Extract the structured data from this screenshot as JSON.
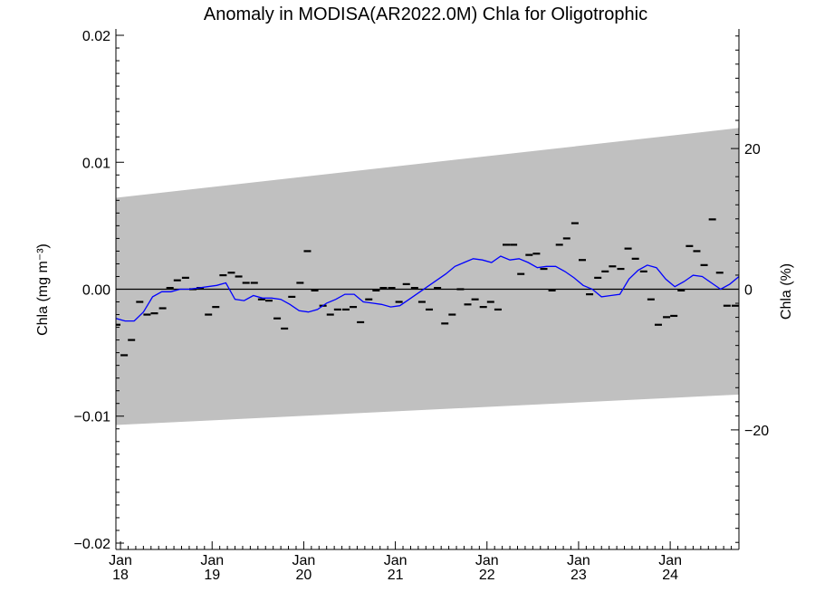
{
  "chart_data": {
    "type": "line",
    "title": "Anomaly in MODISA(AR2022.0M) Chla for Oligotrophic",
    "ylabel_left": "Chla (mg m⁻³)",
    "ylabel_right": "Chla (%)",
    "ylim_left": [
      -0.0205,
      0.0205
    ],
    "ylim_right": [
      -37.0,
      37.0
    ],
    "xlim": [
      2017.95,
      2024.75
    ],
    "grid": false,
    "y_ticks_left": [
      {
        "value": 0.02,
        "label": "0.02"
      },
      {
        "value": 0.01,
        "label": "0.01"
      },
      {
        "value": 0.0,
        "label": "0.00"
      },
      {
        "value": -0.01,
        "label": "−0.01"
      },
      {
        "value": -0.02,
        "label": "−0.02"
      }
    ],
    "y_ticks_right": [
      {
        "value": 20,
        "label": "20"
      },
      {
        "value": 0,
        "label": "0"
      },
      {
        "value": -20,
        "label": "−20"
      }
    ],
    "x_ticks": [
      {
        "value": 2018,
        "month": "Jan",
        "year": "18"
      },
      {
        "value": 2019,
        "month": "Jan",
        "year": "19"
      },
      {
        "value": 2020,
        "month": "Jan",
        "year": "20"
      },
      {
        "value": 2021,
        "month": "Jan",
        "year": "21"
      },
      {
        "value": 2022,
        "month": "Jan",
        "year": "22"
      },
      {
        "value": 2023,
        "month": "Jan",
        "year": "23"
      },
      {
        "value": 2024,
        "month": "Jan",
        "year": "24"
      }
    ],
    "envelope": {
      "x": [
        2017.95,
        2024.75
      ],
      "upper": [
        0.0072,
        0.0127
      ],
      "lower": [
        -0.0107,
        -0.0083
      ],
      "color": "#c0c0c0"
    },
    "zero_line_color": "#000000",
    "series": [
      {
        "kind": "points",
        "color": "#000000",
        "x": [
          2017.96,
          2018.04,
          2018.12,
          2018.21,
          2018.29,
          2018.37,
          2018.46,
          2018.54,
          2018.62,
          2018.71,
          2018.79,
          2018.87,
          2018.96,
          2019.04,
          2019.12,
          2019.21,
          2019.29,
          2019.37,
          2019.46,
          2019.54,
          2019.62,
          2019.71,
          2019.79,
          2019.87,
          2019.96,
          2020.04,
          2020.12,
          2020.21,
          2020.29,
          2020.37,
          2020.46,
          2020.54,
          2020.62,
          2020.71,
          2020.79,
          2020.87,
          2020.96,
          2021.04,
          2021.12,
          2021.21,
          2021.29,
          2021.37,
          2021.46,
          2021.54,
          2021.62,
          2021.71,
          2021.79,
          2021.87,
          2021.96,
          2022.04,
          2022.12,
          2022.21,
          2022.29,
          2022.37,
          2022.46,
          2022.54,
          2022.62,
          2022.71,
          2022.79,
          2022.87,
          2022.96,
          2023.04,
          2023.12,
          2023.21,
          2023.29,
          2023.37,
          2023.46,
          2023.54,
          2023.62,
          2023.71,
          2023.79,
          2023.87,
          2023.96,
          2024.04,
          2024.12,
          2024.21,
          2024.29,
          2024.37,
          2024.46,
          2024.54,
          2024.62,
          2024.71
        ],
        "y": [
          -0.0028,
          -0.0052,
          -0.004,
          -0.001,
          -0.002,
          -0.0019,
          -0.0015,
          0.0001,
          0.0007,
          0.0009,
          0.0,
          0.0001,
          -0.002,
          -0.0014,
          0.0011,
          0.0013,
          0.001,
          0.0005,
          0.0005,
          -0.0008,
          -0.0009,
          -0.0023,
          -0.0031,
          -0.0006,
          0.0005,
          0.003,
          -0.0001,
          -0.0013,
          -0.002,
          -0.0016,
          -0.0016,
          -0.0014,
          -0.0026,
          -0.0008,
          -0.0001,
          0.0001,
          0.0001,
          -0.001,
          0.0004,
          0.0001,
          -0.001,
          -0.0016,
          0.0001,
          -0.0027,
          -0.002,
          0.0,
          -0.0012,
          -0.0008,
          -0.0014,
          -0.001,
          -0.0016,
          0.0035,
          0.0035,
          0.0012,
          0.0027,
          0.0028,
          0.0016,
          -0.0001,
          0.0035,
          0.004,
          0.0052,
          0.0023,
          -0.0004,
          0.0009,
          0.0014,
          0.0018,
          0.0016,
          0.0032,
          0.0024,
          0.0014,
          -0.0008,
          -0.0028,
          -0.0022,
          -0.0021,
          -0.0001,
          0.0034,
          0.003,
          0.0019,
          0.0055,
          0.0013,
          -0.0013,
          -0.0013
        ]
      },
      {
        "kind": "line",
        "color": "#0000ff",
        "x": [
          2017.95,
          2018.05,
          2018.15,
          2018.25,
          2018.35,
          2018.45,
          2018.55,
          2018.65,
          2018.75,
          2018.85,
          2018.95,
          2019.05,
          2019.15,
          2019.25,
          2019.35,
          2019.45,
          2019.55,
          2019.65,
          2019.75,
          2019.85,
          2019.95,
          2020.05,
          2020.15,
          2020.25,
          2020.35,
          2020.45,
          2020.55,
          2020.65,
          2020.75,
          2020.85,
          2020.95,
          2021.05,
          2021.15,
          2021.25,
          2021.35,
          2021.45,
          2021.55,
          2021.65,
          2021.75,
          2021.85,
          2021.95,
          2022.05,
          2022.15,
          2022.25,
          2022.35,
          2022.45,
          2022.55,
          2022.65,
          2022.75,
          2022.85,
          2022.95,
          2023.05,
          2023.15,
          2023.25,
          2023.35,
          2023.45,
          2023.55,
          2023.65,
          2023.75,
          2023.85,
          2023.95,
          2024.05,
          2024.15,
          2024.25,
          2024.35,
          2024.45,
          2024.55,
          2024.65,
          2024.75
        ],
        "y": [
          -0.0023,
          -0.0025,
          -0.0025,
          -0.0018,
          -0.0006,
          -0.0002,
          -0.0002,
          0.0,
          0.0,
          0.0001,
          0.0002,
          0.0003,
          0.0005,
          -0.0008,
          -0.0009,
          -0.0005,
          -0.0007,
          -0.0007,
          -0.0008,
          -0.0012,
          -0.0017,
          -0.0018,
          -0.0016,
          -0.0011,
          -0.0008,
          -0.0004,
          -0.0004,
          -0.001,
          -0.0011,
          -0.0012,
          -0.0014,
          -0.0013,
          -0.0008,
          -0.0003,
          0.0002,
          0.0007,
          0.0012,
          0.0018,
          0.0021,
          0.0024,
          0.0023,
          0.0021,
          0.0026,
          0.0023,
          0.0024,
          0.0021,
          0.0017,
          0.0018,
          0.0018,
          0.0014,
          0.0009,
          0.0003,
          0.0,
          -0.0006,
          -0.0005,
          -0.0004,
          0.0008,
          0.0015,
          0.0019,
          0.0017,
          0.0008,
          0.0002,
          0.0006,
          0.0011,
          0.001,
          0.0005,
          0.0,
          0.0004,
          0.001
        ]
      }
    ]
  }
}
